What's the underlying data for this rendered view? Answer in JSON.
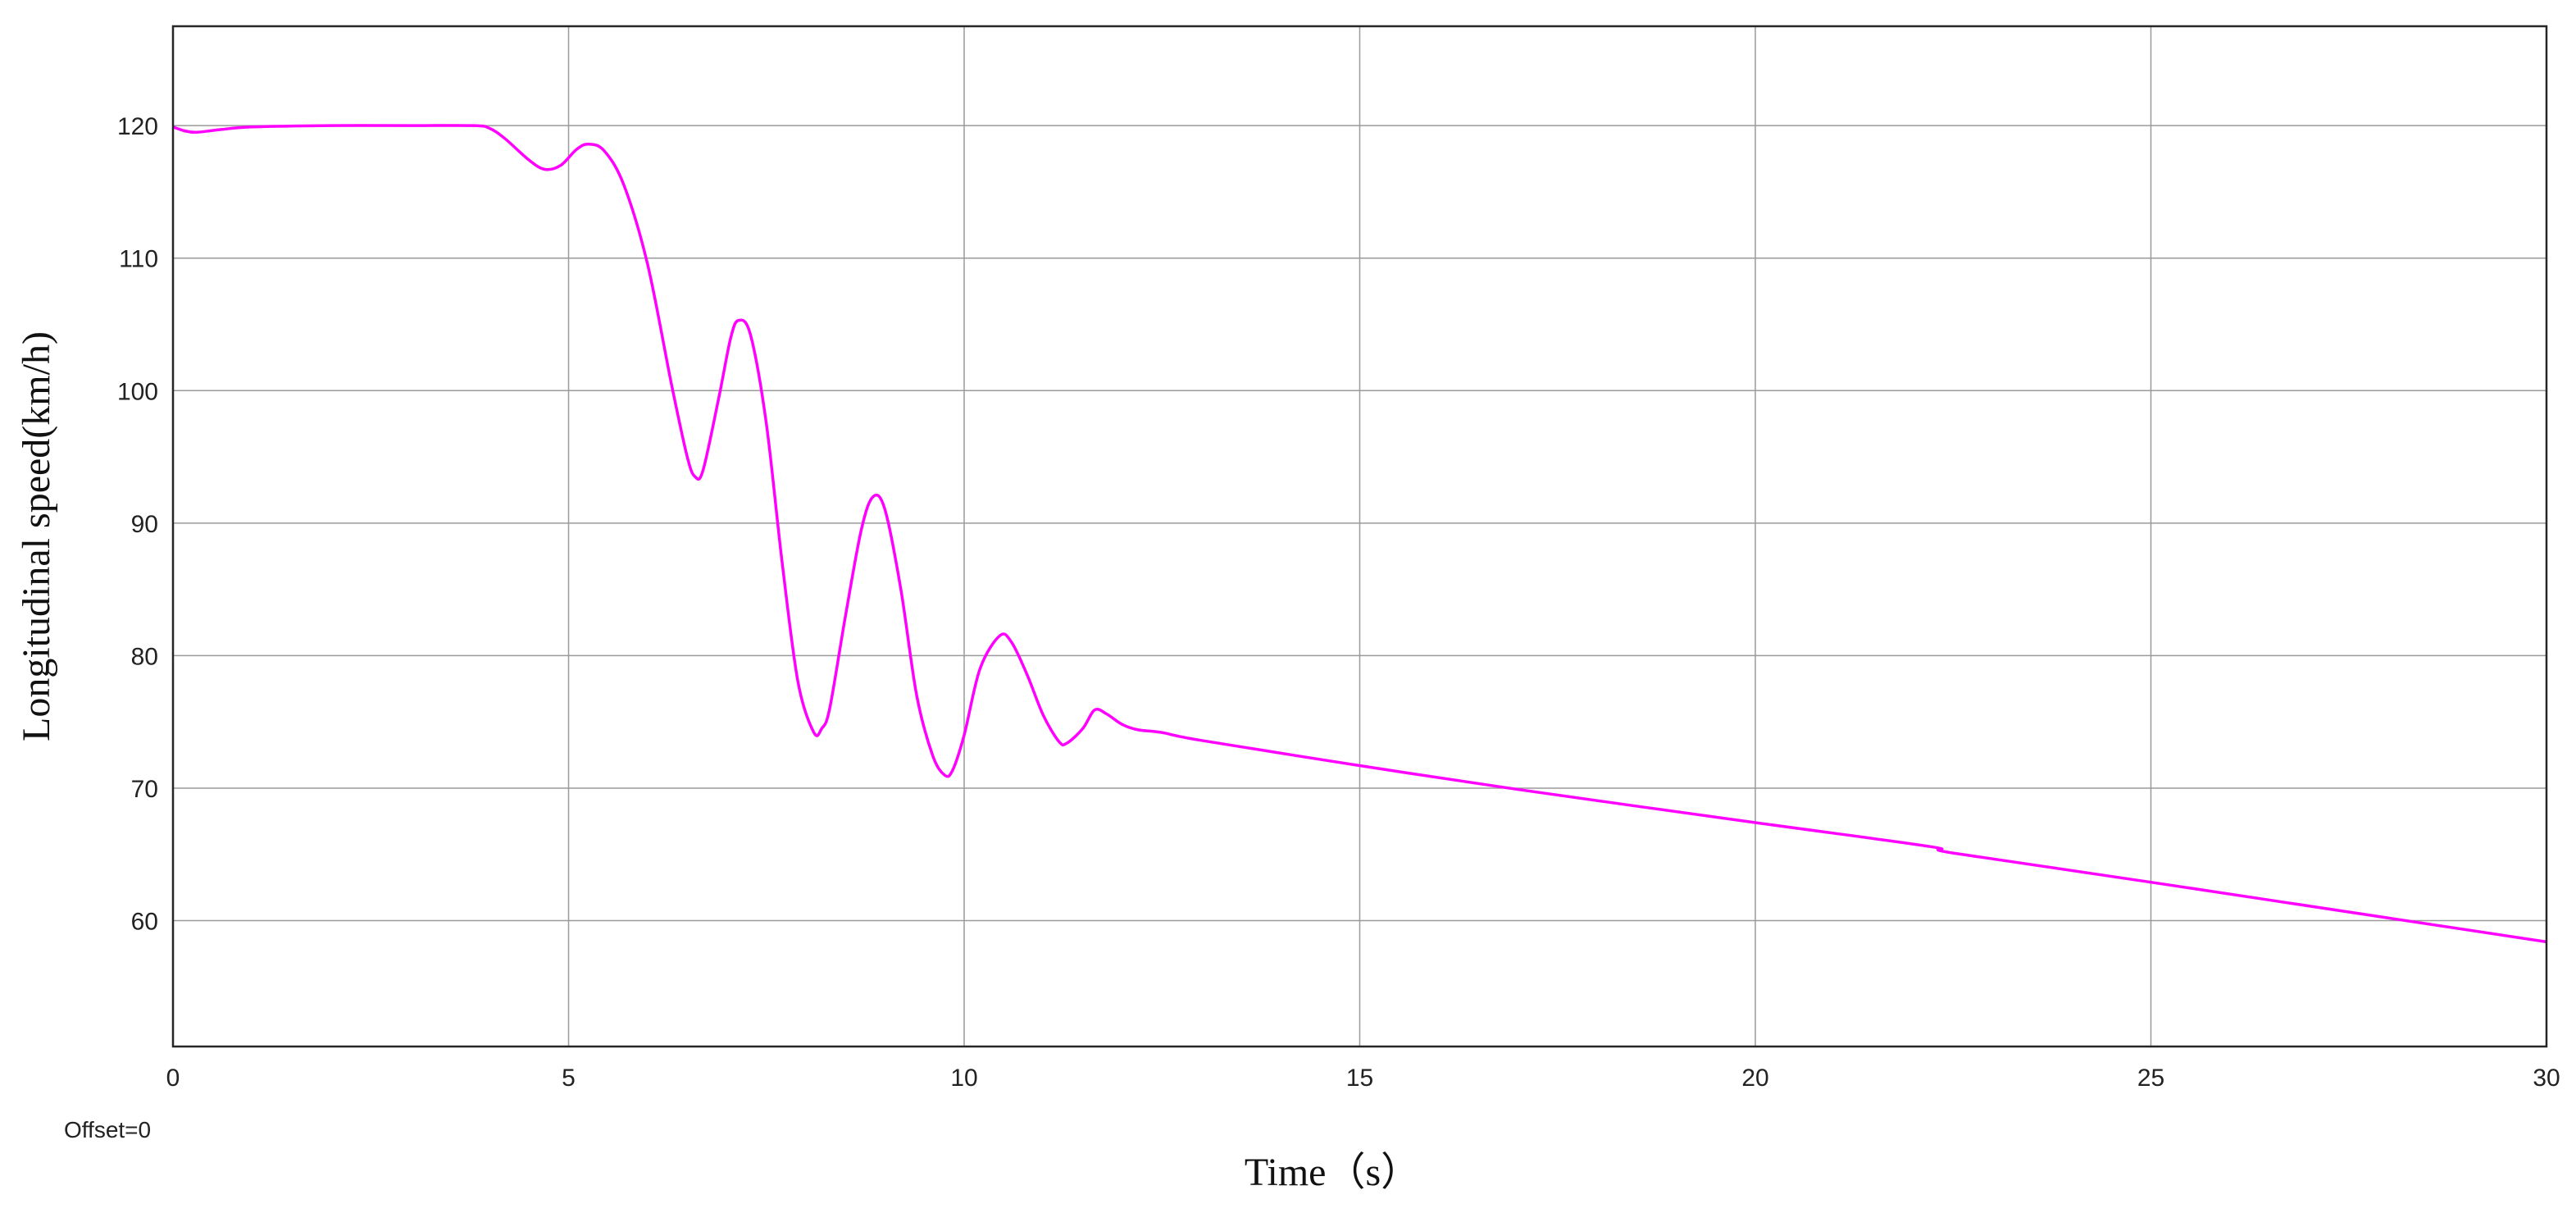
{
  "chart_data": {
    "type": "line",
    "title": "",
    "xlabel": "Time（s）",
    "ylabel": "Longitudinal speed(km/h)",
    "xlim": [
      0,
      30
    ],
    "ylim": [
      50.5,
      127.5
    ],
    "xticks": [
      0,
      5,
      10,
      15,
      20,
      25,
      30
    ],
    "yticks": [
      60,
      70,
      80,
      90,
      100,
      110,
      120
    ],
    "xtick_labels": [
      "0",
      "5",
      "10",
      "15",
      "20",
      "25",
      "30"
    ],
    "ytick_labels": [
      "60",
      "70",
      "80",
      "90",
      "100",
      "110",
      "120"
    ],
    "grid": true,
    "legend": "none",
    "offset_text": "Offset=0",
    "series": [
      {
        "color": "#ff00ff",
        "x": [
          0,
          0.15,
          0.3,
          0.6,
          1.0,
          2.0,
          3.0,
          3.8,
          4.0,
          4.2,
          4.5,
          4.7,
          4.9,
          5.1,
          5.25,
          5.45,
          5.7,
          6.0,
          6.3,
          6.5,
          6.6,
          6.7,
          6.9,
          7.05,
          7.15,
          7.3,
          7.5,
          7.7,
          7.9,
          8.1,
          8.2,
          8.3,
          8.5,
          8.7,
          8.85,
          9.0,
          9.2,
          9.4,
          9.6,
          9.75,
          9.85,
          10.0,
          10.2,
          10.45,
          10.6,
          10.8,
          11.0,
          11.2,
          11.3,
          11.5,
          11.65,
          11.8,
          12.0,
          12.2,
          12.5,
          13.0,
          15.0,
          17.0,
          20.0,
          22.2,
          22.5,
          25.0,
          28.0,
          30.0
        ],
        "y": [
          119.9,
          119.6,
          119.5,
          119.7,
          119.9,
          120.0,
          120.0,
          120.0,
          119.8,
          119.0,
          117.4,
          116.7,
          117.0,
          118.2,
          118.6,
          118.1,
          115.5,
          109.5,
          100.5,
          95.0,
          93.5,
          94.0,
          99.5,
          104.0,
          105.3,
          104.2,
          97.5,
          87.0,
          78.0,
          74.2,
          74.5,
          76.0,
          83.0,
          89.5,
          92.0,
          91.0,
          85.0,
          77.0,
          72.5,
          71.0,
          71.3,
          74.0,
          79.0,
          81.5,
          81.0,
          78.5,
          75.5,
          73.5,
          73.4,
          74.5,
          75.9,
          75.6,
          74.8,
          74.4,
          74.2,
          73.6,
          71.7,
          69.9,
          67.4,
          65.6,
          65.1,
          62.9,
          60.2,
          58.4
        ]
      }
    ]
  }
}
